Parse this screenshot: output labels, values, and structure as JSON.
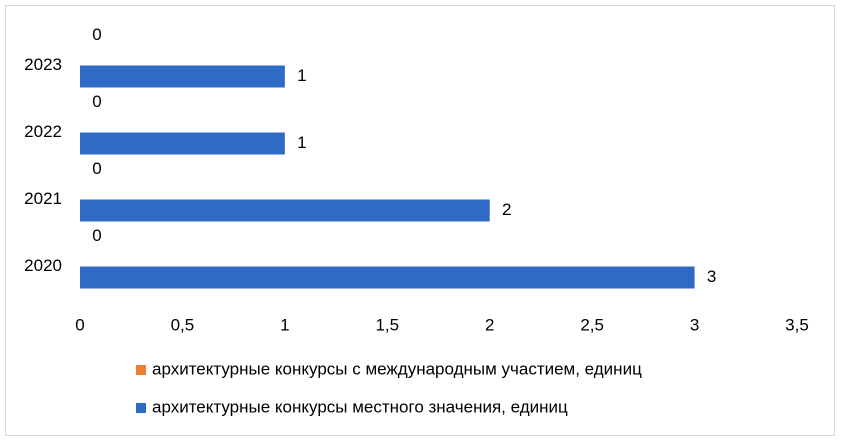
{
  "chart_data": {
    "type": "bar",
    "orientation": "horizontal",
    "categories": [
      "2020",
      "2021",
      "2022",
      "2023"
    ],
    "series": [
      {
        "name": "архитектурные конкурсы с международным участием, единиц",
        "color": "#ed7d31",
        "values": [
          0,
          0,
          0,
          0
        ]
      },
      {
        "name": "архитектурные конкурсы местного значения, единиц",
        "color": "#2e6bc6",
        "values": [
          3,
          2,
          1,
          1
        ]
      }
    ],
    "xlim": [
      0,
      3.5
    ],
    "xticks": [
      0,
      {
        "value": 0.5,
        "label": "0,5"
      },
      1,
      {
        "value": 1.5,
        "label": "1,5"
      },
      2,
      {
        "value": 2.5,
        "label": "2,5"
      },
      3,
      {
        "value": 3.5,
        "label": "3,5"
      }
    ],
    "grid": false,
    "legend": "bottom"
  }
}
